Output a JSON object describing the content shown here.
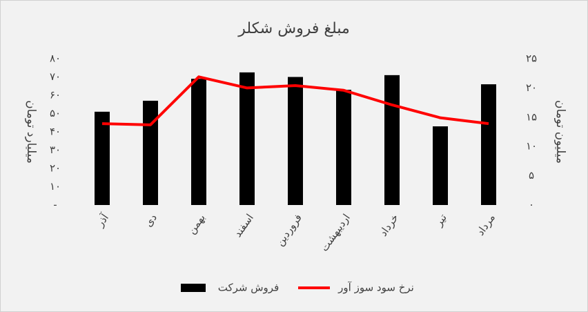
{
  "chart_data": {
    "type": "bar-line",
    "title": "مبلغ فروش شکلر",
    "y_label": "میلیارد تومان",
    "y2_label": "میلیون تومان",
    "categories": [
      "آذر",
      "دی",
      "بهمن",
      "اسفند",
      "فروردین",
      "اردیبهشت",
      "خرداد",
      "تیر",
      "مرداد"
    ],
    "series": [
      {
        "name": "فروش شرکت",
        "type": "bar",
        "color": "#000000",
        "values": [
          51,
          57,
          69,
          72.5,
          70,
          63,
          71,
          43,
          66
        ]
      },
      {
        "name": "نرخ سود سوز آور",
        "type": "line",
        "axis": "y2",
        "color": "#ff0000",
        "values": [
          13.9,
          13.7,
          21.9,
          20,
          20.4,
          19.6,
          17.1,
          14.9,
          13.9
        ]
      }
    ],
    "ylim": [
      0,
      80
    ],
    "yticks": [
      {
        "value": 0,
        "label": "-"
      },
      {
        "value": 10,
        "label": "۱۰"
      },
      {
        "value": 20,
        "label": "۲۰"
      },
      {
        "value": 30,
        "label": "۳۰"
      },
      {
        "value": 40,
        "label": "۴۰"
      },
      {
        "value": 50,
        "label": "۵۰"
      },
      {
        "value": 60,
        "label": "۶۰"
      },
      {
        "value": 70,
        "label": "۷۰"
      },
      {
        "value": 80,
        "label": "۸۰"
      }
    ],
    "y2lim": [
      0,
      25
    ],
    "y2ticks": [
      {
        "value": 0,
        "label": "۰"
      },
      {
        "value": 5,
        "label": "۵"
      },
      {
        "value": 10,
        "label": "۱۰"
      },
      {
        "value": 15,
        "label": "۱۵"
      },
      {
        "value": 20,
        "label": "۲۰"
      },
      {
        "value": 25,
        "label": "۲۵"
      }
    ],
    "grid": false
  }
}
